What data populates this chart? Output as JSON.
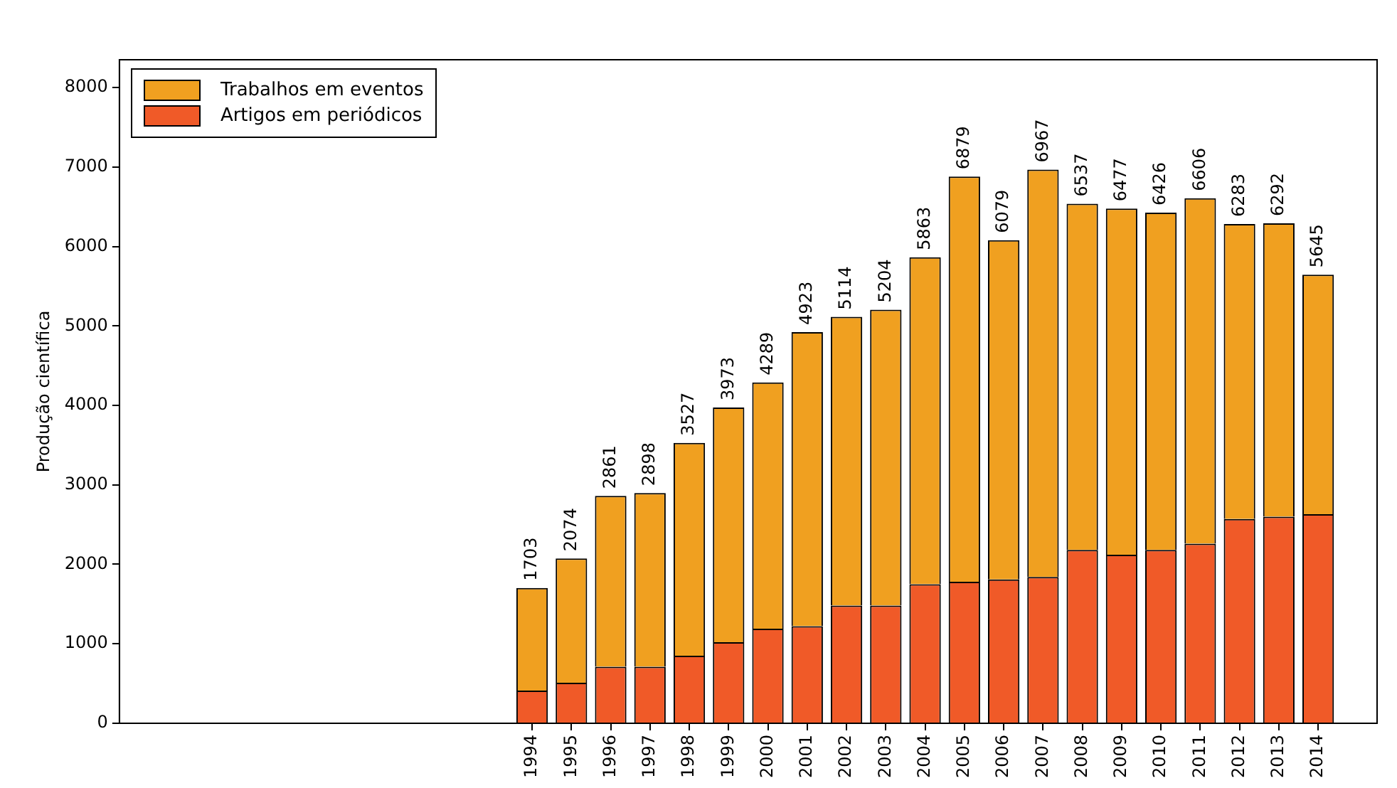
{
  "chart_data": {
    "type": "bar",
    "stacked": true,
    "ylabel": "Produção científica",
    "x": [
      1994,
      1995,
      1996,
      1997,
      1998,
      1999,
      2000,
      2001,
      2002,
      2003,
      2004,
      2005,
      2006,
      2007,
      2008,
      2009,
      2010,
      2011,
      2012,
      2013,
      2014
    ],
    "series": [
      {
        "name": "Artigos em periódicos",
        "color": "#f05a28",
        "values": [
          410,
          510,
          710,
          710,
          850,
          1020,
          1190,
          1220,
          1480,
          1480,
          1750,
          1780,
          1810,
          1840,
          2180,
          2120,
          2180,
          2260,
          2570,
          2600,
          2630
        ]
      },
      {
        "name": "Trabalhos em eventos",
        "color": "#f0a020",
        "values": [
          1293,
          1564,
          2151,
          2188,
          2677,
          2953,
          3099,
          3703,
          3634,
          3724,
          4113,
          5099,
          4269,
          5127,
          4357,
          4357,
          4246,
          4346,
          3713,
          3692,
          3015
        ]
      }
    ],
    "totals": [
      "1703",
      "2074",
      "2861",
      "2898",
      "3527",
      "3973",
      "4289",
      "4923",
      "5114",
      "5204",
      "5863",
      "6879",
      "6079",
      "6967",
      "6537",
      "6477",
      "6426",
      "6606",
      "6283",
      "6292",
      "5645"
    ],
    "xlim": [
      1983.5,
      2015.5
    ],
    "xticks": [
      1994,
      1995,
      1996,
      1997,
      1998,
      1999,
      2000,
      2001,
      2002,
      2003,
      2004,
      2005,
      2006,
      2007,
      2008,
      2009,
      2010,
      2011,
      2012,
      2013,
      2014
    ],
    "ylim": [
      0,
      8350
    ],
    "yticks": [
      0,
      1000,
      2000,
      3000,
      4000,
      5000,
      6000,
      7000,
      8000
    ],
    "grid": false,
    "legend": "top left"
  }
}
